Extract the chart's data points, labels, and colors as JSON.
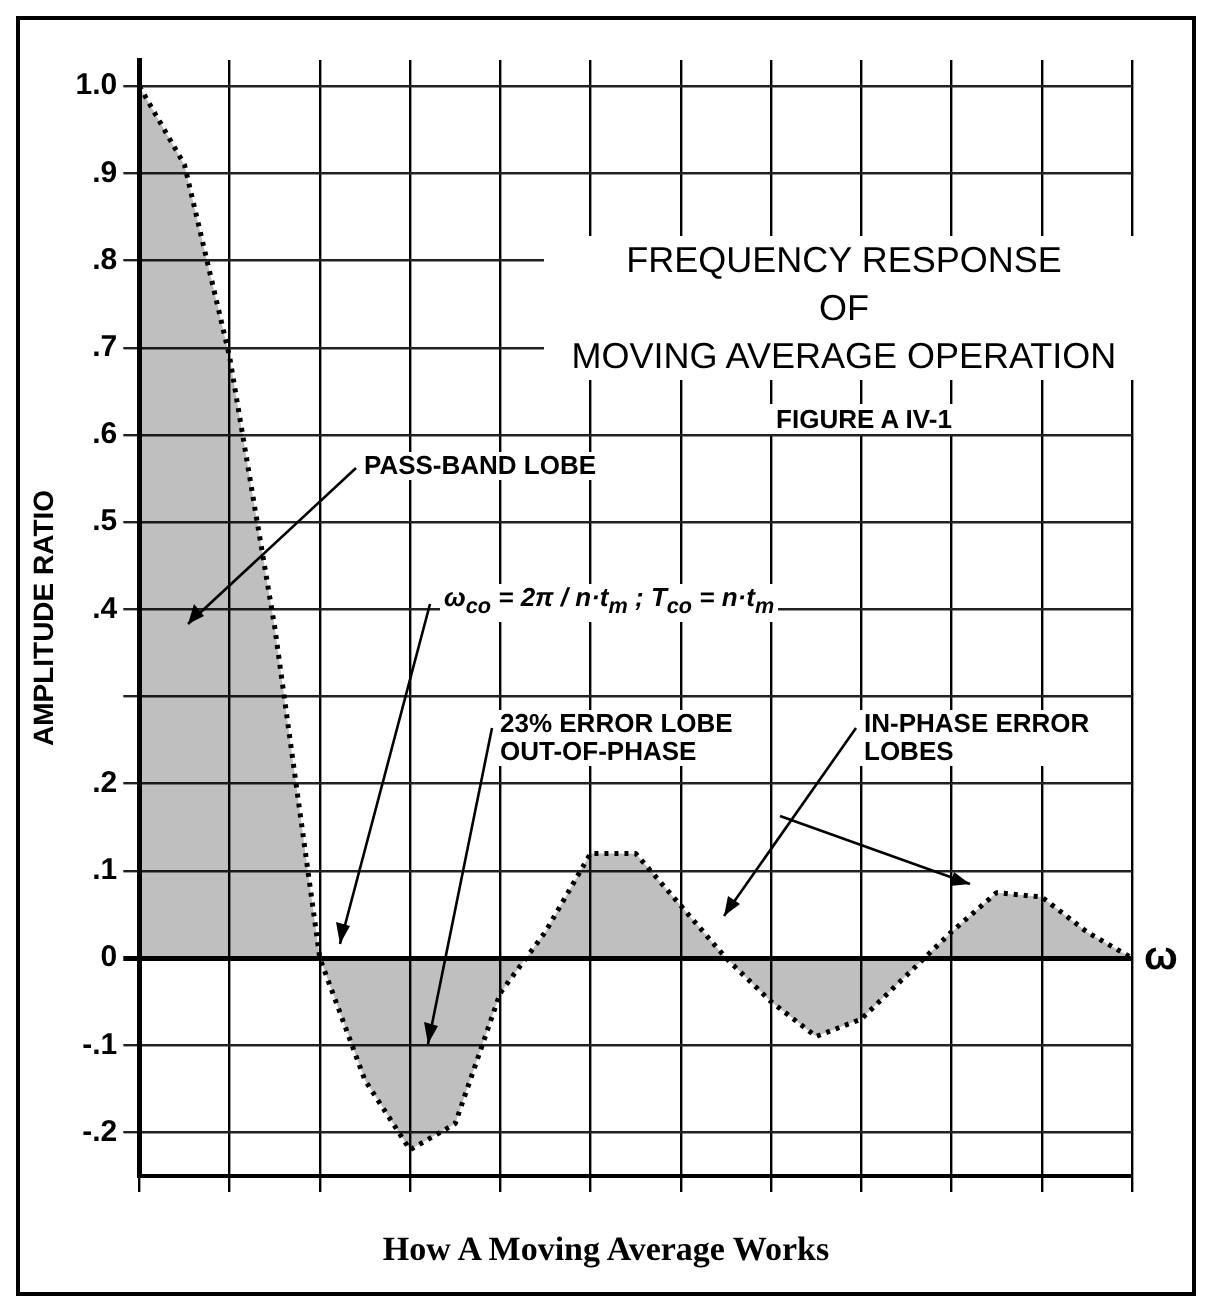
{
  "chart_data": {
    "type": "area",
    "title": "FREQUENCY RESPONSE\nOF\nMOVING AVERAGE OPERATION",
    "subtitle": "FIGURE A IV-1",
    "ylabel": "AMPLITUDE RATIO",
    "xlabel": "ω",
    "annotations": [
      "PASS-BAND LOBE",
      "ω$_{co}$ = 2π / n·t$_{m}$ ; T$_{co}$ = n·t$_{m}$",
      "23% ERROR LOBE\nOUT-OF-PHASE",
      "IN-PHASE ERROR\nLOBES",
      "How A Moving Average Works"
    ],
    "categories": [
      null,
      null,
      null,
      null,
      null,
      null,
      null,
      null,
      null,
      null,
      null,
      null,
      null,
      null,
      null,
      null,
      null,
      null,
      null,
      null,
      null,
      null,
      null
    ],
    "series": [
      {
        "color": "#000000",
        "values": [
          1.0,
          0.91,
          0.69,
          0.38,
          0.0,
          -0.14,
          -0.22,
          -0.19,
          -0.04,
          0.03,
          0.12,
          0.12,
          0.06,
          0.0,
          -0.05,
          -0.09,
          -0.07,
          -0.02,
          0.03,
          0.075,
          0.07,
          0.03,
          0.0
        ]
      }
    ],
    "ylim": [
      -0.25,
      1.03
    ],
    "yticks": [
      {
        "value": -0.2,
        "label": "-.2"
      },
      {
        "value": -0.1,
        "label": "-.1"
      },
      {
        "value": 0,
        "label": "0"
      },
      {
        "value": 0.1,
        "label": ".1"
      },
      {
        "value": 0.2,
        "label": ".2"
      },
      {
        "value": 0.3,
        "label": null
      },
      {
        "value": 0.4,
        "label": ".4"
      },
      {
        "value": 0.5,
        "label": ".5"
      },
      {
        "value": 0.6,
        "label": ".6"
      },
      {
        "value": 0.7,
        "label": ".7"
      },
      {
        "value": 0.8,
        "label": ".8"
      },
      {
        "value": 0.9,
        "label": ".9"
      },
      {
        "value": 1.0,
        "label": "1.0"
      }
    ],
    "tick_labels": "y",
    "grid": true,
    "legend": false,
    "marker": "none",
    "line_style": "dotted"
  }
}
